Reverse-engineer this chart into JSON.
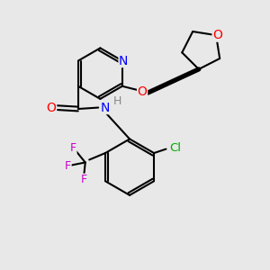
{
  "bg_color": "#e8e8e8",
  "atom_colors": {
    "N": "#0000ff",
    "O": "#ff0000",
    "Cl": "#00aa00",
    "F": "#cc00cc",
    "H": "#888888",
    "C": "#000000"
  },
  "bond_color": "#000000",
  "bond_width": 1.5
}
